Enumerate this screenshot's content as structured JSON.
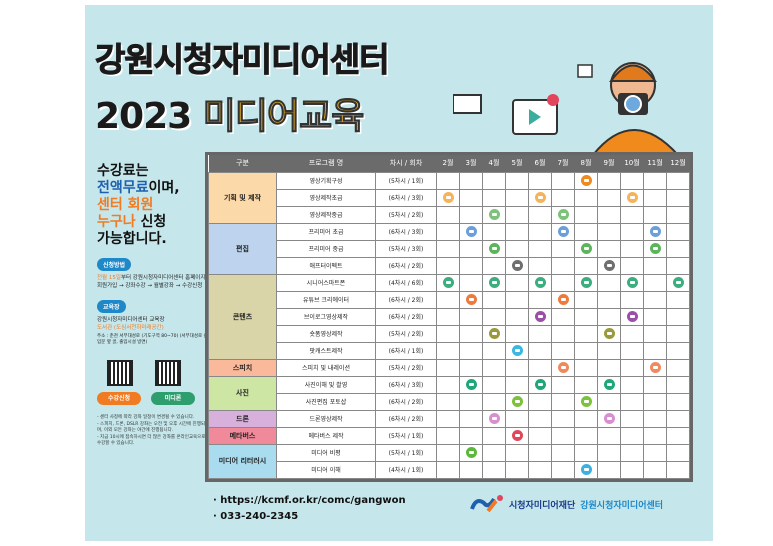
{
  "title_line1": "강원시청자미디어센터",
  "title_year": "2023",
  "title_highlight": "미디어교육",
  "left": {
    "line1": "수강료는",
    "line2a": "전액무료",
    "line2b": "이며,",
    "line3": "센터 회원",
    "line4a": "누구나",
    "line4b": " 신청",
    "line5": "가능합니다.",
    "apply_pill": "신청방법",
    "apply_hl": "전월 15일",
    "apply_text": "부터 강원시청자미디어센터 홈페이지 회원가입 → 강좌수강 → 월별강좌 → 수강신청",
    "place_pill": "교육장",
    "place_text": "강원시청자미디어센터 교육장",
    "place_hl": "도서관 (도심서천하미래공간)",
    "address": "주소 : 춘천 서부대성로 (기도구역 80~70) (서부대성로 출입문 옆 골, 출입시설 방면)",
    "btn_apply": "수강신청",
    "btn_media": "미디론",
    "notes": [
      "- 센터 사정에 따라 강좌 일정이 변경될 수 있습니다.",
      "- 스피치, 드론, DSLR 강좌는 오전 및 오후 시간에 진행되며, 이외 모든 강좌는 야간에 진행됩니다.",
      "- 지금 10시에 접속하시면 더 많은 강좌를 온라인교육으로 수강할 수 있습니다."
    ]
  },
  "table": {
    "headers": [
      "구분",
      "프로그램 명",
      "차시 / 회차",
      "2월",
      "3월",
      "4월",
      "5월",
      "6월",
      "7월",
      "8월",
      "9월",
      "10월",
      "11월",
      "12월"
    ],
    "rows": [
      {
        "cat": "기획 및 제작",
        "span": 3,
        "catcolor": "#fcd9a8",
        "name": "영상기획구성",
        "sess": "(5차시 / 1회)",
        "months": [
          8
        ],
        "color": "#f08a1c"
      },
      {
        "name": "영상제작초급",
        "sess": "(6차시 / 3회)",
        "months": [
          2,
          6,
          10
        ],
        "color": "#f5b35c"
      },
      {
        "name": "영상제작중급",
        "sess": "(5차시 / 2회)",
        "months": [
          4,
          7
        ],
        "color": "#7cc27a"
      },
      {
        "cat": "편집",
        "span": 3,
        "catcolor": "#bdd3ee",
        "name": "프리미어 초급",
        "sess": "(6차시 / 3회)",
        "months": [
          3,
          7,
          11
        ],
        "color": "#6a9fdc"
      },
      {
        "name": "프리미어 중급",
        "sess": "(5차시 / 3회)",
        "months": [
          4,
          8,
          11
        ],
        "color": "#5cb55c"
      },
      {
        "name": "애프터이펙트",
        "sess": "(6차시 / 2회)",
        "months": [
          5,
          9
        ],
        "color": "#6f6f6f"
      },
      {
        "cat": "콘텐츠",
        "span": 5,
        "catcolor": "#d9d5a8",
        "name": "시니어스마트폰",
        "sess": "(4차시 / 6회)",
        "months": [
          2,
          4,
          6,
          8,
          10,
          12
        ],
        "color": "#3aae7e"
      },
      {
        "name": "유튜브 크리에이터",
        "sess": "(6차시 / 2회)",
        "months": [
          3,
          7
        ],
        "color": "#ef7a3c"
      },
      {
        "name": "브이로그영상제작",
        "sess": "(6차시 / 2회)",
        "months": [
          6,
          10
        ],
        "color": "#9b4fa8"
      },
      {
        "name": "숏폼영상제작",
        "sess": "(5차시 / 2회)",
        "months": [
          4,
          9
        ],
        "color": "#9a9a3c"
      },
      {
        "name": "팟캐스트제작",
        "sess": "(6차시 / 1회)",
        "months": [
          5
        ],
        "color": "#3db6e0"
      },
      {
        "cat": "스피치",
        "span": 1,
        "catcolor": "#f9b99a",
        "name": "스피치 및 내레이션",
        "sess": "(5차시 / 2회)",
        "months": [
          7,
          11
        ],
        "color": "#f08a5c"
      },
      {
        "cat": "사진",
        "span": 2,
        "catcolor": "#cde6a3",
        "name": "사진이해 및 촬영",
        "sess": "(6차시 / 3회)",
        "months": [
          3,
          6,
          9
        ],
        "color": "#1fa67a"
      },
      {
        "name": "사진편집 포토샵",
        "sess": "(6차시 / 2회)",
        "months": [
          5,
          8
        ],
        "color": "#7cc23c"
      },
      {
        "cat": "드론",
        "span": 1,
        "catcolor": "#d8b0dc",
        "name": "드론영상제작",
        "sess": "(6차시 / 2회)",
        "months": [
          4,
          9
        ],
        "color": "#d88fcf"
      },
      {
        "cat": "메타버스",
        "span": 1,
        "catcolor": "#f08a9a",
        "name": "메타버스 제작",
        "sess": "(5차시 / 1회)",
        "months": [
          5
        ],
        "color": "#e2465c"
      },
      {
        "cat": "미디어 리터러시",
        "span": 2,
        "catcolor": "#a9dcef",
        "name": "미디어 비평",
        "sess": "(5차시 / 1회)",
        "months": [
          3
        ],
        "color": "#5cb83c"
      },
      {
        "name": "미디어 이해",
        "sess": "(4차시 / 1회)",
        "months": [
          8
        ],
        "color": "#3db0e0"
      }
    ]
  },
  "footer": {
    "url": "· https://kcmf.or.kr/comc/gangwon",
    "phone": "· 033-240-2345",
    "org1": "시청자미디어재단",
    "org2": "강원시청자미디어센터"
  },
  "colors": {
    "background": "#c5e7eb",
    "accent_yellow": "#f5b81b",
    "accent_orange": "#f07b22",
    "accent_blue": "#1f5fb0"
  }
}
